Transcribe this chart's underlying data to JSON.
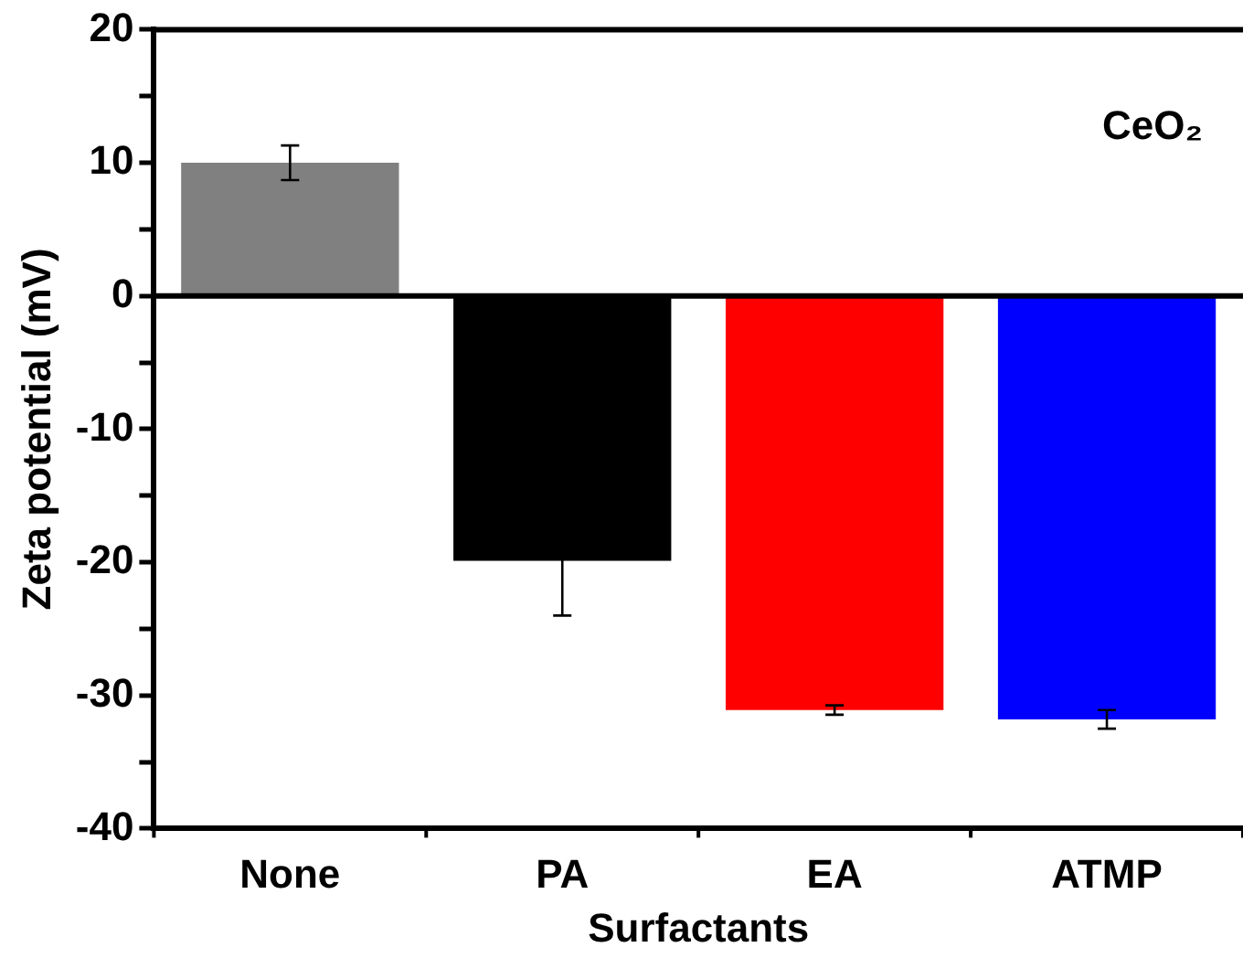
{
  "chart_data": {
    "type": "bar",
    "xlabel": "Surfactants",
    "ylabel": "Zeta potential (mV)",
    "categories": [
      "None",
      "PA",
      "EA",
      "ATMP"
    ],
    "values": [
      10.0,
      -19.9,
      -31.1,
      -31.8
    ],
    "colors": [
      "#808080",
      "#000000",
      "#ff0000",
      "#0000ff"
    ],
    "errors": [
      1.3,
      4.1,
      0.35,
      0.7
    ],
    "ylim": [
      -40,
      20
    ],
    "yticks": [
      -40,
      {
        "value": -35,
        "label": null
      },
      -30,
      {
        "value": -25,
        "label": null
      },
      -20,
      {
        "value": -15,
        "label": null
      },
      -10,
      {
        "value": -5,
        "label": null
      },
      0,
      {
        "value": 5,
        "label": null
      },
      10,
      {
        "value": 15,
        "label": null
      },
      20
    ],
    "ref_lines": [
      {
        "axis": "y",
        "value": 0,
        "color": "#000000"
      }
    ],
    "annotations": [
      "CeO₂"
    ],
    "grid": false,
    "legend": false
  }
}
